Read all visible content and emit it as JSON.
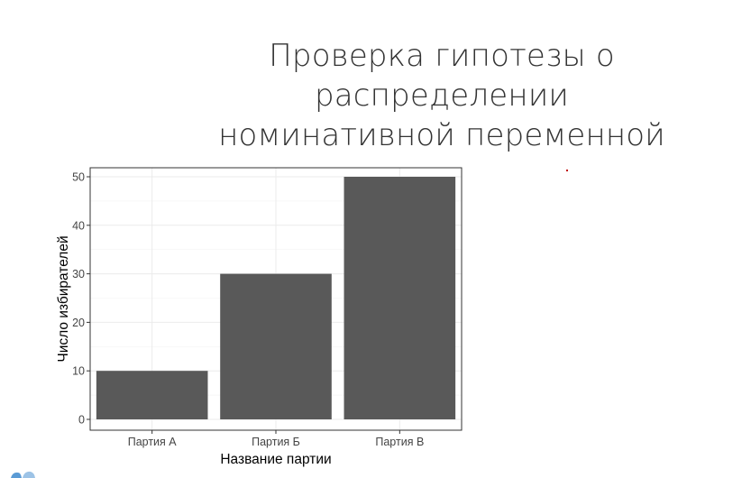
{
  "slide": {
    "title_line1": "Проверка гипотезы о распределении",
    "title_line2": "номинативной переменной"
  },
  "chart_data": {
    "type": "bar",
    "categories": [
      "Партия А",
      "Партия Б",
      "Партия В"
    ],
    "values": [
      10,
      30,
      50
    ],
    "title": "",
    "xlabel": "Название партии",
    "ylabel": "Число избирателей",
    "ylim": [
      0,
      52
    ],
    "yticks": [
      0,
      10,
      20,
      30,
      40,
      50
    ],
    "grid": true,
    "legend": "none",
    "bar_color": "#595959",
    "grid_color": "#ebebeb"
  },
  "decor": {
    "accent_dot_color": "#c00000",
    "corner_icon": "logo-fragment-icon",
    "corner_icon_color": "#5b9bd5"
  }
}
